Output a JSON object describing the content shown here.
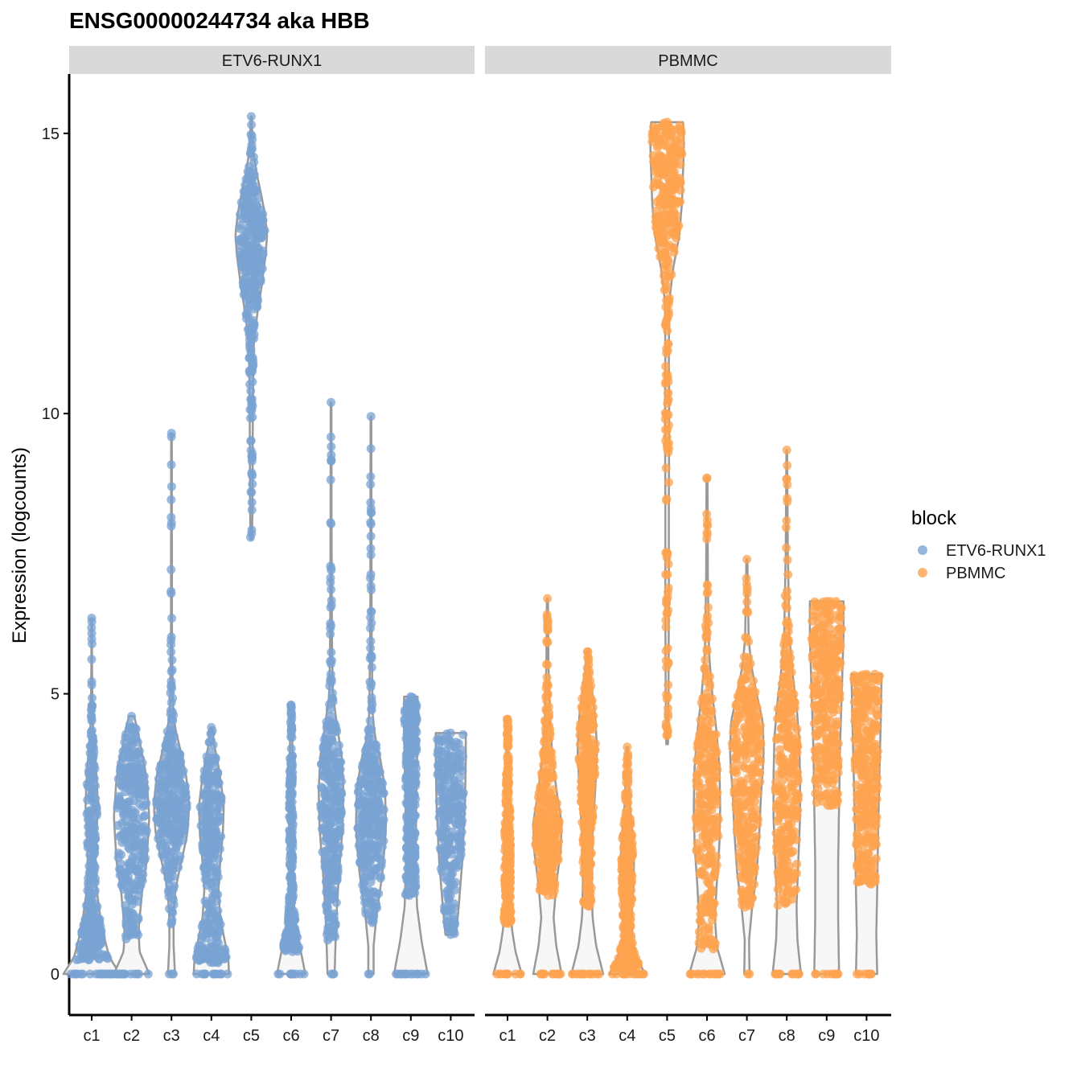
{
  "chart_data": {
    "type": "violin",
    "title": "ENSG00000244734 aka HBB",
    "ylabel": "Expression (logcounts)",
    "xlabel": "",
    "ylim": [
      -0.75,
      16.1
    ],
    "yticks": [
      0,
      5,
      10,
      15
    ],
    "categories": [
      "c1",
      "c2",
      "c3",
      "c4",
      "c5",
      "c6",
      "c7",
      "c8",
      "c9",
      "c10"
    ],
    "panels": [
      "ETV6-RUNX1",
      "PBMMC"
    ],
    "legend": {
      "title": "block",
      "position": "right",
      "entries": [
        {
          "label": "ETV6-RUNX1",
          "color": "#7aa3d3"
        },
        {
          "label": "PBMMC",
          "color": "#fea34f"
        }
      ]
    },
    "series": [
      {
        "name": "ETV6-RUNX1",
        "color": "#7aa3d3",
        "groups": [
          {
            "cluster": "c1",
            "max": 6.35,
            "min_nonzero": 0.25,
            "density": [
              [
                0,
                1.6
              ],
              [
                0.3,
                1.0
              ],
              [
                0.6,
                0.75
              ],
              [
                1.0,
                0.5
              ],
              [
                1.5,
                0.28
              ],
              [
                2.0,
                0.22
              ],
              [
                2.5,
                0.28
              ],
              [
                3.0,
                0.35
              ],
              [
                3.4,
                0.3
              ],
              [
                3.8,
                0.22
              ],
              [
                4.2,
                0.1
              ],
              [
                4.6,
                0.05
              ],
              [
                5.5,
                0.02
              ],
              [
                6.35,
                0.02
              ]
            ]
          },
          {
            "cluster": "c2",
            "max": 4.6,
            "min_nonzero": 0.6,
            "density": [
              [
                0,
                1.0
              ],
              [
                0.4,
                0.45
              ],
              [
                0.8,
                0.4
              ],
              [
                1.5,
                0.6
              ],
              [
                2.0,
                0.85
              ],
              [
                2.8,
                1.0
              ],
              [
                3.5,
                0.85
              ],
              [
                4.0,
                0.55
              ],
              [
                4.4,
                0.3
              ],
              [
                4.6,
                0.15
              ]
            ]
          },
          {
            "cluster": "c3",
            "max": 9.65,
            "min_nonzero": 0.8,
            "density": [
              [
                0,
                0.2
              ],
              [
                0.5,
                0.12
              ],
              [
                1.0,
                0.12
              ],
              [
                1.5,
                0.22
              ],
              [
                2.0,
                0.55
              ],
              [
                2.5,
                0.9
              ],
              [
                3.0,
                1.0
              ],
              [
                3.5,
                0.85
              ],
              [
                4.0,
                0.5
              ],
              [
                4.4,
                0.2
              ],
              [
                4.8,
                0.08
              ],
              [
                6.0,
                0.03
              ],
              [
                9.65,
                0.02
              ]
            ]
          },
          {
            "cluster": "c4",
            "max": 4.4,
            "min_nonzero": 0.2,
            "density": [
              [
                0,
                1.0
              ],
              [
                0.3,
                0.95
              ],
              [
                0.6,
                0.75
              ],
              [
                1.0,
                0.5
              ],
              [
                1.5,
                0.4
              ],
              [
                2.0,
                0.5
              ],
              [
                2.5,
                0.65
              ],
              [
                3.0,
                0.7
              ],
              [
                3.4,
                0.55
              ],
              [
                3.8,
                0.35
              ],
              [
                4.1,
                0.15
              ],
              [
                4.4,
                0.05
              ]
            ]
          },
          {
            "cluster": "c5",
            "max": 15.3,
            "min_nonzero": 7.75,
            "density": [
              [
                7.75,
                0.05
              ],
              [
                8.5,
                0.07
              ],
              [
                9.5,
                0.08
              ],
              [
                10.5,
                0.1
              ],
              [
                11.3,
                0.15
              ],
              [
                11.8,
                0.35
              ],
              [
                12.3,
                0.6
              ],
              [
                12.8,
                0.8
              ],
              [
                13.2,
                0.9
              ],
              [
                13.6,
                0.75
              ],
              [
                14.0,
                0.5
              ],
              [
                14.3,
                0.3
              ],
              [
                14.7,
                0.1
              ],
              [
                15.0,
                0.05
              ],
              [
                15.3,
                0.03
              ]
            ]
          },
          {
            "cluster": "c6",
            "max": 4.8,
            "min_nonzero": 0.4,
            "density": [
              [
                0,
                0.8
              ],
              [
                0.4,
                0.55
              ],
              [
                0.8,
                0.3
              ],
              [
                1.3,
                0.15
              ],
              [
                2.0,
                0.1
              ],
              [
                2.8,
                0.12
              ],
              [
                3.5,
                0.1
              ],
              [
                4.2,
                0.06
              ],
              [
                4.8,
                0.03
              ]
            ]
          },
          {
            "cluster": "c7",
            "max": 10.2,
            "min_nonzero": 0.5,
            "density": [
              [
                0,
                0.2
              ],
              [
                0.5,
                0.25
              ],
              [
                1.0,
                0.3
              ],
              [
                1.8,
                0.45
              ],
              [
                2.6,
                0.65
              ],
              [
                3.3,
                0.7
              ],
              [
                3.9,
                0.6
              ],
              [
                4.4,
                0.35
              ],
              [
                5.0,
                0.1
              ],
              [
                6.0,
                0.05
              ],
              [
                8.0,
                0.03
              ],
              [
                10.2,
                0.02
              ]
            ]
          },
          {
            "cluster": "c8",
            "max": 9.95,
            "min_nonzero": 0.9,
            "density": [
              [
                0,
                0.15
              ],
              [
                0.5,
                0.15
              ],
              [
                1.0,
                0.3
              ],
              [
                1.8,
                0.65
              ],
              [
                2.6,
                0.85
              ],
              [
                3.3,
                0.8
              ],
              [
                3.8,
                0.55
              ],
              [
                4.2,
                0.25
              ],
              [
                4.6,
                0.1
              ],
              [
                6.0,
                0.04
              ],
              [
                9.95,
                0.02
              ]
            ]
          },
          {
            "cluster": "c9",
            "max": 4.95,
            "min_nonzero": 1.4,
            "density": [
              [
                0,
                0.95
              ],
              [
                0.6,
                0.6
              ],
              [
                1.2,
                0.35
              ],
              [
                2.0,
                0.28
              ],
              [
                3.0,
                0.3
              ],
              [
                3.8,
                0.35
              ],
              [
                4.5,
                0.4
              ],
              [
                4.95,
                0.38
              ]
            ]
          },
          {
            "cluster": "c10",
            "max": 4.3,
            "min_nonzero": 0.7,
            "density": [
              [
                0.7,
                0.3
              ],
              [
                1.2,
                0.45
              ],
              [
                2.0,
                0.65
              ],
              [
                3.0,
                0.8
              ],
              [
                3.8,
                0.85
              ],
              [
                4.3,
                0.85
              ]
            ]
          }
        ]
      },
      {
        "name": "PBMMC",
        "color": "#fea34f",
        "groups": [
          {
            "cluster": "c1",
            "max": 4.55,
            "min_nonzero": 0.9,
            "density": [
              [
                0,
                0.8
              ],
              [
                0.4,
                0.45
              ],
              [
                0.8,
                0.25
              ],
              [
                1.3,
                0.18
              ],
              [
                2.0,
                0.2
              ],
              [
                2.6,
                0.18
              ],
              [
                3.2,
                0.1
              ],
              [
                4.0,
                0.06
              ],
              [
                4.55,
                0.04
              ]
            ]
          },
          {
            "cluster": "c2",
            "max": 6.7,
            "min_nonzero": 1.4,
            "density": [
              [
                0,
                0.8
              ],
              [
                0.5,
                0.5
              ],
              [
                1.0,
                0.35
              ],
              [
                1.6,
                0.5
              ],
              [
                2.2,
                0.75
              ],
              [
                2.7,
                0.8
              ],
              [
                3.2,
                0.55
              ],
              [
                3.8,
                0.3
              ],
              [
                4.5,
                0.15
              ],
              [
                5.5,
                0.06
              ],
              [
                6.7,
                0.03
              ]
            ]
          },
          {
            "cluster": "c3",
            "max": 5.75,
            "min_nonzero": 1.2,
            "density": [
              [
                0,
                0.9
              ],
              [
                0.5,
                0.5
              ],
              [
                1.0,
                0.3
              ],
              [
                1.6,
                0.25
              ],
              [
                2.5,
                0.3
              ],
              [
                3.3,
                0.45
              ],
              [
                4.0,
                0.55
              ],
              [
                4.6,
                0.45
              ],
              [
                5.1,
                0.25
              ],
              [
                5.5,
                0.1
              ],
              [
                5.75,
                0.05
              ]
            ]
          },
          {
            "cluster": "c4",
            "max": 4.05,
            "min_nonzero": 0.1,
            "density": [
              [
                0,
                1.0
              ],
              [
                0.3,
                0.55
              ],
              [
                0.6,
                0.3
              ],
              [
                1.0,
                0.25
              ],
              [
                1.5,
                0.35
              ],
              [
                2.0,
                0.38
              ],
              [
                2.5,
                0.3
              ],
              [
                3.0,
                0.15
              ],
              [
                3.5,
                0.08
              ],
              [
                4.05,
                0.04
              ]
            ]
          },
          {
            "cluster": "c5",
            "max": 15.2,
            "min_nonzero": 4.1,
            "density": [
              [
                4.1,
                0.05
              ],
              [
                5.0,
                0.08
              ],
              [
                6.5,
                0.1
              ],
              [
                8.5,
                0.1
              ],
              [
                10.0,
                0.12
              ],
              [
                11.0,
                0.1
              ],
              [
                12.0,
                0.12
              ],
              [
                12.6,
                0.35
              ],
              [
                13.2,
                0.7
              ],
              [
                13.8,
                0.85
              ],
              [
                14.3,
                0.9
              ],
              [
                14.8,
                0.95
              ],
              [
                15.2,
                0.9
              ]
            ]
          },
          {
            "cluster": "c6",
            "max": 8.85,
            "min_nonzero": 0.4,
            "density": [
              [
                0,
                1.0
              ],
              [
                0.5,
                0.55
              ],
              [
                1.0,
                0.45
              ],
              [
                1.6,
                0.55
              ],
              [
                2.3,
                0.7
              ],
              [
                3.0,
                0.75
              ],
              [
                3.7,
                0.7
              ],
              [
                4.3,
                0.55
              ],
              [
                5.0,
                0.3
              ],
              [
                5.7,
                0.12
              ],
              [
                7.0,
                0.05
              ],
              [
                8.85,
                0.03
              ]
            ]
          },
          {
            "cluster": "c7",
            "max": 7.4,
            "min_nonzero": 1.1,
            "density": [
              [
                0,
                0.15
              ],
              [
                0.6,
                0.12
              ],
              [
                1.2,
                0.3
              ],
              [
                1.8,
                0.55
              ],
              [
                2.5,
                0.7
              ],
              [
                3.2,
                0.8
              ],
              [
                3.9,
                0.95
              ],
              [
                4.5,
                0.9
              ],
              [
                5.0,
                0.55
              ],
              [
                5.5,
                0.25
              ],
              [
                6.0,
                0.1
              ],
              [
                7.4,
                0.03
              ]
            ]
          },
          {
            "cluster": "c8",
            "max": 9.35,
            "min_nonzero": 1.2,
            "density": [
              [
                0,
                0.8
              ],
              [
                0.6,
                0.6
              ],
              [
                1.2,
                0.55
              ],
              [
                2.0,
                0.65
              ],
              [
                2.8,
                0.75
              ],
              [
                3.5,
                0.75
              ],
              [
                4.2,
                0.7
              ],
              [
                4.8,
                0.55
              ],
              [
                5.3,
                0.35
              ],
              [
                6.0,
                0.15
              ],
              [
                7.5,
                0.06
              ],
              [
                9.35,
                0.02
              ]
            ]
          },
          {
            "cluster": "c9",
            "max": 6.65,
            "min_nonzero": 3.0,
            "density": [
              [
                0,
                0.7
              ],
              [
                1.0,
                0.65
              ],
              [
                2.0,
                0.65
              ],
              [
                3.0,
                0.7
              ],
              [
                4.0,
                0.75
              ],
              [
                5.0,
                0.85
              ],
              [
                6.0,
                0.95
              ],
              [
                6.65,
                0.95
              ]
            ]
          },
          {
            "cluster": "c10",
            "max": 5.35,
            "min_nonzero": 1.6,
            "density": [
              [
                0,
                0.6
              ],
              [
                0.7,
                0.55
              ],
              [
                1.5,
                0.6
              ],
              [
                2.5,
                0.65
              ],
              [
                3.5,
                0.72
              ],
              [
                4.5,
                0.8
              ],
              [
                5.35,
                0.85
              ]
            ]
          }
        ]
      }
    ]
  }
}
